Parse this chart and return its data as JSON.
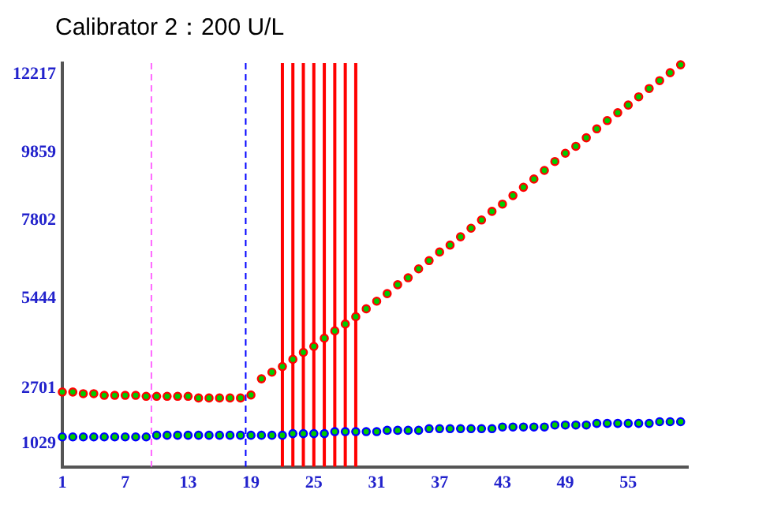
{
  "chart_data": {
    "type": "scatter",
    "title": "Calibrator 2：200 U/L",
    "x": [
      1,
      2,
      3,
      4,
      5,
      6,
      7,
      8,
      9,
      10,
      11,
      12,
      13,
      14,
      15,
      16,
      17,
      18,
      19,
      20,
      21,
      22,
      23,
      24,
      25,
      26,
      27,
      28,
      29,
      30,
      31,
      32,
      33,
      34,
      35,
      36,
      37,
      38,
      39,
      40,
      41,
      42,
      43,
      44,
      45,
      46,
      47,
      48,
      49,
      50,
      51,
      52,
      53,
      54,
      55,
      56,
      57,
      58,
      59,
      60
    ],
    "series": [
      {
        "color": "#ff0000",
        "values": [
          2600,
          2600,
          2550,
          2550,
          2500,
          2500,
          2500,
          2500,
          2470,
          2470,
          2470,
          2470,
          2470,
          2420,
          2420,
          2420,
          2420,
          2420,
          2510,
          3000,
          3200,
          3370,
          3590,
          3800,
          3980,
          4230,
          4450,
          4660,
          4880,
          5120,
          5350,
          5580,
          5850,
          6060,
          6330,
          6580,
          6840,
          7050,
          7300,
          7560,
          7810,
          8070,
          8290,
          8550,
          8800,
          9050,
          9310,
          9580,
          9830,
          10040,
          10300,
          10570,
          10820,
          11060,
          11290,
          11540,
          11790,
          12030,
          12270,
          12510
        ]
      },
      {
        "color": "#0000ff",
        "values": [
          1240,
          1240,
          1240,
          1240,
          1240,
          1240,
          1240,
          1240,
          1240,
          1290,
          1290,
          1290,
          1290,
          1290,
          1290,
          1290,
          1290,
          1290,
          1290,
          1290,
          1290,
          1290,
          1340,
          1340,
          1340,
          1340,
          1400,
          1400,
          1400,
          1400,
          1400,
          1440,
          1440,
          1440,
          1440,
          1490,
          1490,
          1490,
          1490,
          1490,
          1490,
          1490,
          1540,
          1540,
          1540,
          1540,
          1540,
          1600,
          1600,
          1600,
          1600,
          1650,
          1650,
          1650,
          1650,
          1650,
          1650,
          1700,
          1700,
          1700
        ]
      }
    ],
    "xlim": [
      1,
      60.7
    ],
    "xticks": [
      1,
      7,
      13,
      19,
      25,
      31,
      37,
      43,
      49,
      55
    ],
    "ylim": [
      336,
      12560
    ],
    "yticks": [
      1029,
      2701,
      5444,
      7802,
      9859,
      12217
    ],
    "ref_lines": [
      {
        "axis": "x",
        "value": 9.5,
        "color": "#ff66ff",
        "line_style": "dashed"
      },
      {
        "axis": "x",
        "value": 18.5,
        "color": "#0000ff",
        "line_style": "dashed"
      },
      {
        "axis": "x",
        "value": 22,
        "color": "#ff0000",
        "line_style": "solid"
      },
      {
        "axis": "x",
        "value": 23,
        "color": "#ff0000",
        "line_style": "solid"
      },
      {
        "axis": "x",
        "value": 24,
        "color": "#ff0000",
        "line_style": "solid"
      },
      {
        "axis": "x",
        "value": 25,
        "color": "#ff0000",
        "line_style": "solid"
      },
      {
        "axis": "x",
        "value": 26,
        "color": "#ff0000",
        "line_style": "solid"
      },
      {
        "axis": "x",
        "value": 27,
        "color": "#ff0000",
        "line_style": "solid"
      },
      {
        "axis": "x",
        "value": 28,
        "color": "#ff0000",
        "line_style": "solid"
      },
      {
        "axis": "x",
        "value": 29,
        "color": "#ff0000",
        "line_style": "solid"
      }
    ],
    "grid": false,
    "legend": false,
    "marker": "circle"
  }
}
